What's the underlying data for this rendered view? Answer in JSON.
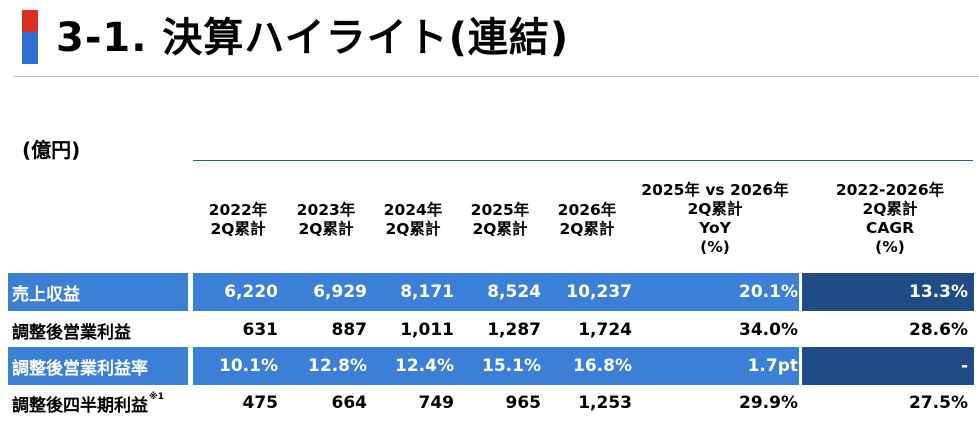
{
  "title": "3-1. 決算ハイライト(連結)",
  "unit": "(億円)",
  "columns": [
    {
      "line1": "2022年",
      "line2": "2Q累計"
    },
    {
      "line1": "2023年",
      "line2": "2Q累計"
    },
    {
      "line1": "2024年",
      "line2": "2Q累計"
    },
    {
      "line1": "2025年",
      "line2": "2Q累計"
    },
    {
      "line1": "2026年",
      "line2": "2Q累計"
    }
  ],
  "yoy_header": {
    "line1": "2025年 vs 2026年",
    "line2": "2Q累計",
    "line3": "YoY",
    "line4": "(%)"
  },
  "cagr_header": {
    "line1": "2022-2026年",
    "line2": "2Q累計",
    "line3": "CAGR",
    "line4": "(%)"
  },
  "rows": [
    {
      "label": "売上収益",
      "values": [
        "6,220",
        "6,929",
        "8,171",
        "8,524",
        "10,237"
      ],
      "yoy": "20.1%",
      "cagr": "13.3%"
    },
    {
      "label": "調整後営業利益",
      "values": [
        "631",
        "887",
        "1,011",
        "1,287",
        "1,724"
      ],
      "yoy": "34.0%",
      "cagr": "28.6%"
    },
    {
      "label": "調整後営業利益率",
      "values": [
        "10.1%",
        "12.8%",
        "12.4%",
        "15.1%",
        "16.8%"
      ],
      "yoy": "1.7pt",
      "cagr": "-"
    },
    {
      "label": "調整後四半期利益",
      "label_sup": "※1",
      "values": [
        "475",
        "664",
        "749",
        "965",
        "1,253"
      ],
      "yoy": "29.9%",
      "cagr": "27.5%"
    }
  ],
  "colors": {
    "accent_red": "#d9301e",
    "accent_blue": "#2f6fd1",
    "row_blue": "#3b7fd6",
    "cagr_navy": "#1f4c85"
  }
}
